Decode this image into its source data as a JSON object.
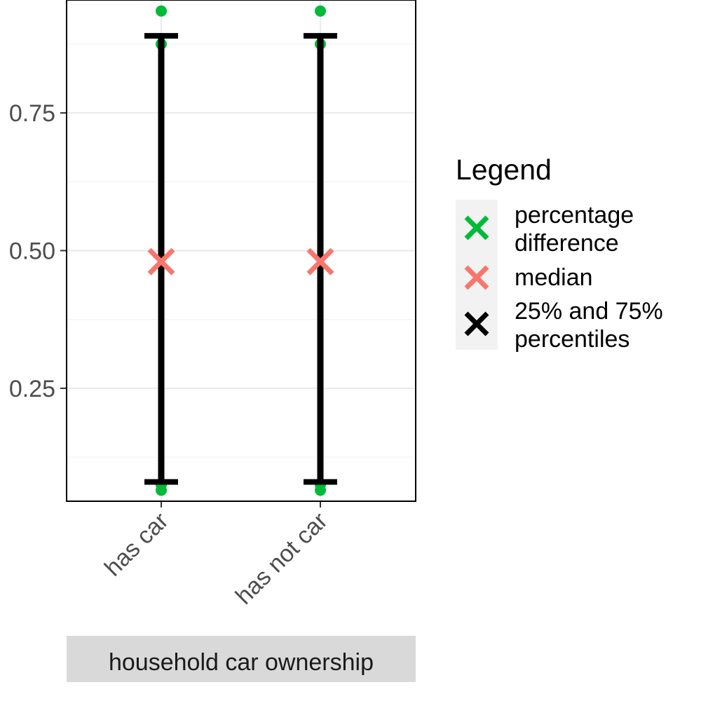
{
  "chart_data": {
    "type": "scatter",
    "categories": [
      "has car",
      "has not car"
    ],
    "strip_label": "household car ownership",
    "ylim": [
      0.045,
      0.955
    ],
    "y_ticks": [
      0.25,
      0.5,
      0.75
    ],
    "y_tick_labels": [
      "0.25",
      "0.50",
      "0.75"
    ],
    "grid": true,
    "legend_position": "right",
    "legend": {
      "title": "Legend",
      "entries": [
        {
          "lines": [
            "percentage",
            "difference"
          ],
          "color": "#00ba38",
          "shape": "x"
        },
        {
          "lines": [
            "median"
          ],
          "color": "#f8766d",
          "shape": "x"
        },
        {
          "lines": [
            "25% and 75%",
            "percentiles"
          ],
          "color": "#000000",
          "shape": "x"
        }
      ]
    },
    "series": [
      {
        "role": "percentage difference",
        "color": "#00ba38",
        "points": [
          {
            "category": "has car",
            "values": [
              0.935,
              0.875,
              0.075,
              0.065
            ]
          },
          {
            "category": "has not car",
            "values": [
              0.935,
              0.875,
              0.075,
              0.065
            ]
          }
        ]
      },
      {
        "role": "median",
        "color": "#f8766d",
        "points": [
          {
            "category": "has car",
            "value": 0.48
          },
          {
            "category": "has not car",
            "value": 0.48
          }
        ]
      },
      {
        "role": "25% and 75% percentiles",
        "color": "#000000",
        "ranges": [
          {
            "category": "has car",
            "low": 0.08,
            "high": 0.89
          },
          {
            "category": "has not car",
            "low": 0.08,
            "high": 0.89
          }
        ]
      }
    ]
  }
}
